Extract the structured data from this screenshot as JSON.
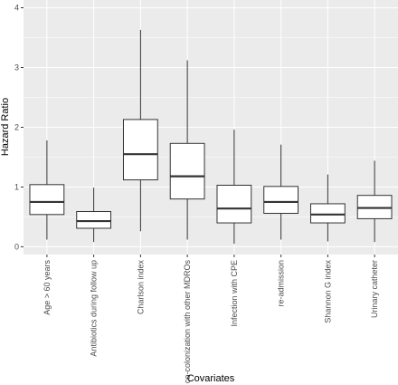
{
  "chart_data": {
    "type": "box",
    "xlabel": "Covariates",
    "ylabel": "Hazard Ratio",
    "ylim": [
      -0.13,
      4.13
    ],
    "yticks": [
      0,
      1,
      2,
      3,
      4
    ],
    "grid": true,
    "categories": [
      "Age > 60 years",
      "Antibiotics during follow up",
      "Charlson index",
      "co-colonization with other MDROs",
      "Infection with CPE",
      "re-admission",
      "Shannon G index",
      "Urinary catheter"
    ],
    "boxes": [
      {
        "min": 0.12,
        "q1": 0.54,
        "median": 0.75,
        "q3": 1.04,
        "max": 1.78
      },
      {
        "min": 0.08,
        "q1": 0.31,
        "median": 0.43,
        "q3": 0.59,
        "max": 0.99
      },
      {
        "min": 0.26,
        "q1": 1.12,
        "median": 1.55,
        "q3": 2.13,
        "max": 3.63
      },
      {
        "min": 0.12,
        "q1": 0.8,
        "median": 1.18,
        "q3": 1.73,
        "max": 3.12
      },
      {
        "min": 0.05,
        "q1": 0.4,
        "median": 0.64,
        "q3": 1.03,
        "max": 1.96
      },
      {
        "min": 0.12,
        "q1": 0.56,
        "median": 0.75,
        "q3": 1.01,
        "max": 1.71
      },
      {
        "min": 0.09,
        "q1": 0.4,
        "median": 0.54,
        "q3": 0.72,
        "max": 1.21
      },
      {
        "min": 0.08,
        "q1": 0.47,
        "median": 0.65,
        "q3": 0.86,
        "max": 1.44
      }
    ],
    "colors": {
      "panel": "#ebebeb",
      "grid_major": "#ffffff",
      "box_fill": "#ffffff",
      "box_line": "#333333",
      "tick_text": "#4d4d4d",
      "tick_mark": "#333333"
    }
  }
}
